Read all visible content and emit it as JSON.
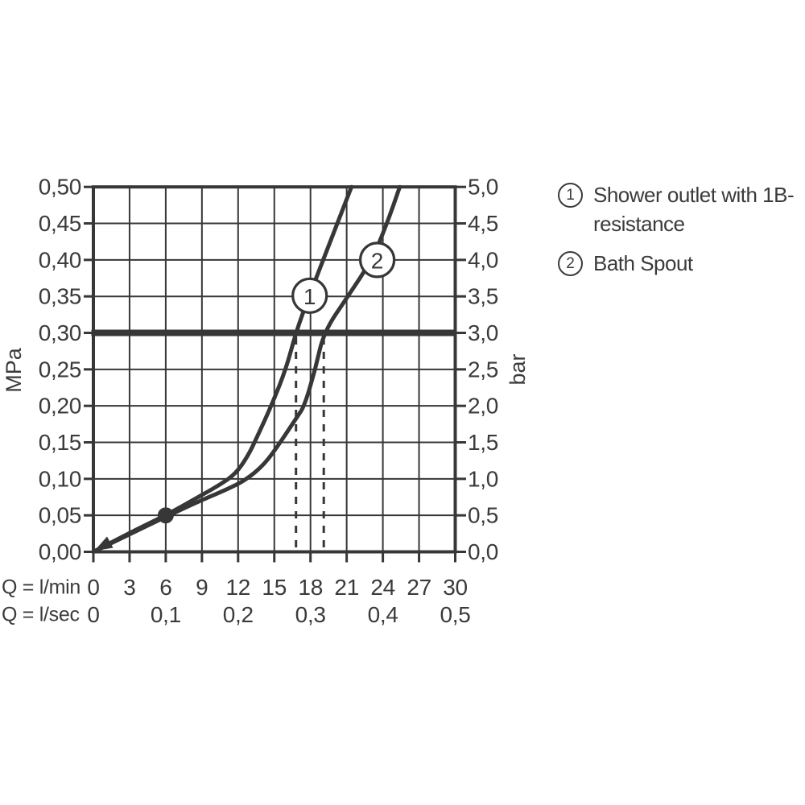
{
  "colors": {
    "line": "#373737",
    "text": "#3b3b3b",
    "background": "#ffffff",
    "marker_fill": "#ffffff"
  },
  "chart_data": {
    "type": "line",
    "description": "Flow rate vs pressure diagram",
    "grid": true,
    "x_axis": {
      "caption_row1": "Q = l/min",
      "caption_row2": "Q = l/sec",
      "lmin_ticks": [
        "0",
        "3",
        "6",
        "9",
        "12",
        "15",
        "18",
        "21",
        "24",
        "27",
        "30"
      ],
      "lsec_ticks": [
        "0",
        "0,1",
        "0,2",
        "0,3",
        "0,4",
        "0,5"
      ],
      "range_lmin": [
        0,
        30
      ]
    },
    "y_axis_left": {
      "unit": "MPa",
      "ticks": [
        "0,50",
        "0,45",
        "0,40",
        "0,35",
        "0,30",
        "0,25",
        "0,20",
        "0,15",
        "0,10",
        "0,05",
        "0,00"
      ],
      "range_mpa": [
        0,
        0.5
      ]
    },
    "y_axis_right": {
      "unit": "bar",
      "ticks": [
        "5,0",
        "4,5",
        "4,0",
        "3,5",
        "3,0",
        "2,5",
        "2,0",
        "1,5",
        "1,0",
        "0,5",
        "0,0"
      ],
      "range_bar": [
        0,
        5
      ]
    },
    "reference_line": {
      "value_mpa": 0.3,
      "value_bar": 3.0
    },
    "marker_point": {
      "q_lmin": 6,
      "mpa": 0.05
    },
    "dashed_guides_q_lmin": [
      16.8,
      19.1
    ],
    "series": [
      {
        "id": "1",
        "name": "Shower outlet with 1B-resistance",
        "label_at": [
          17.93,
          0.351
        ],
        "points_q_lmin_mpa": [
          [
            0,
            0
          ],
          [
            3,
            0.026
          ],
          [
            6,
            0.05
          ],
          [
            9,
            0.078
          ],
          [
            10.5,
            0.092
          ],
          [
            11.8,
            0.107
          ],
          [
            12.8,
            0.131
          ],
          [
            13.5,
            0.155
          ],
          [
            14.8,
            0.202
          ],
          [
            16,
            0.252
          ],
          [
            16.8,
            0.301
          ],
          [
            17.9,
            0.351
          ],
          [
            21.4,
            0.5
          ]
        ]
      },
      {
        "id": "2",
        "name": "Bath Spout",
        "label_at": [
          23.53,
          0.4
        ],
        "points_q_lmin_mpa": [
          [
            0,
            0
          ],
          [
            3,
            0.024
          ],
          [
            6,
            0.048
          ],
          [
            9,
            0.071
          ],
          [
            11,
            0.085
          ],
          [
            12.6,
            0.098
          ],
          [
            14.2,
            0.12
          ],
          [
            15.5,
            0.15
          ],
          [
            16.9,
            0.185
          ],
          [
            17.5,
            0.2
          ],
          [
            18.4,
            0.25
          ],
          [
            19.1,
            0.301
          ],
          [
            21.1,
            0.35
          ],
          [
            23.1,
            0.4
          ],
          [
            24.3,
            0.448
          ],
          [
            25.4,
            0.5
          ]
        ]
      }
    ]
  },
  "legend": {
    "items": [
      {
        "symbol": "1",
        "lines": [
          "Shower outlet with 1B-",
          "resistance"
        ]
      },
      {
        "symbol": "2",
        "lines": [
          "Bath Spout"
        ]
      }
    ]
  }
}
